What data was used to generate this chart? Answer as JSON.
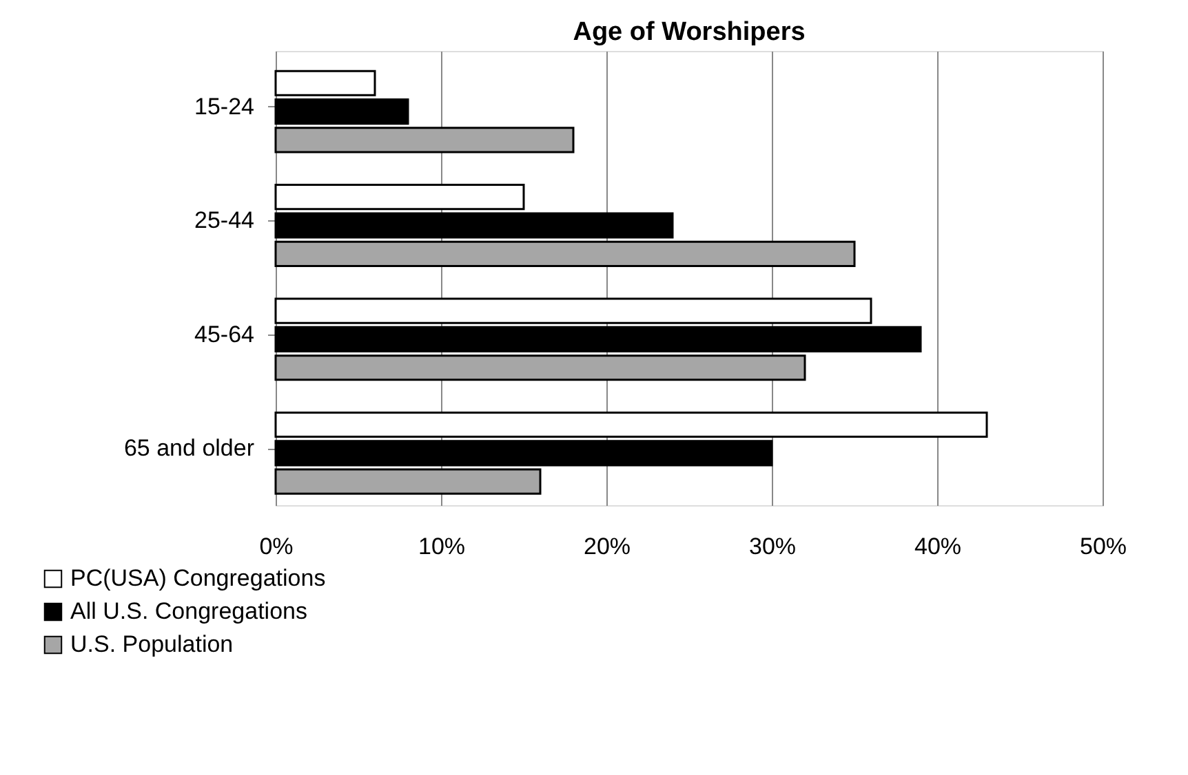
{
  "chart_data": {
    "type": "bar",
    "orientation": "horizontal",
    "title": "Age of Worshipers",
    "categories": [
      "15-24",
      "25-44",
      "45-64",
      "65 and older"
    ],
    "series": [
      {
        "name": "PC(USA) Congregations",
        "color": "#ffffff",
        "values": [
          6,
          15,
          36,
          43
        ]
      },
      {
        "name": "All U.S. Congregations",
        "color": "#000000",
        "values": [
          8,
          24,
          39,
          30
        ]
      },
      {
        "name": "U.S. Population",
        "color": "#a6a6a6",
        "values": [
          18,
          35,
          32,
          16
        ]
      }
    ],
    "xlim": [
      0,
      50
    ],
    "xticks": [
      {
        "value": 0,
        "label": "0%"
      },
      {
        "value": 10,
        "label": "10%"
      },
      {
        "value": 20,
        "label": "20%"
      },
      {
        "value": 30,
        "label": "30%"
      },
      {
        "value": 40,
        "label": "40%"
      },
      {
        "value": 50,
        "label": "50%"
      }
    ],
    "grid": "x",
    "legend": "bottom left"
  }
}
